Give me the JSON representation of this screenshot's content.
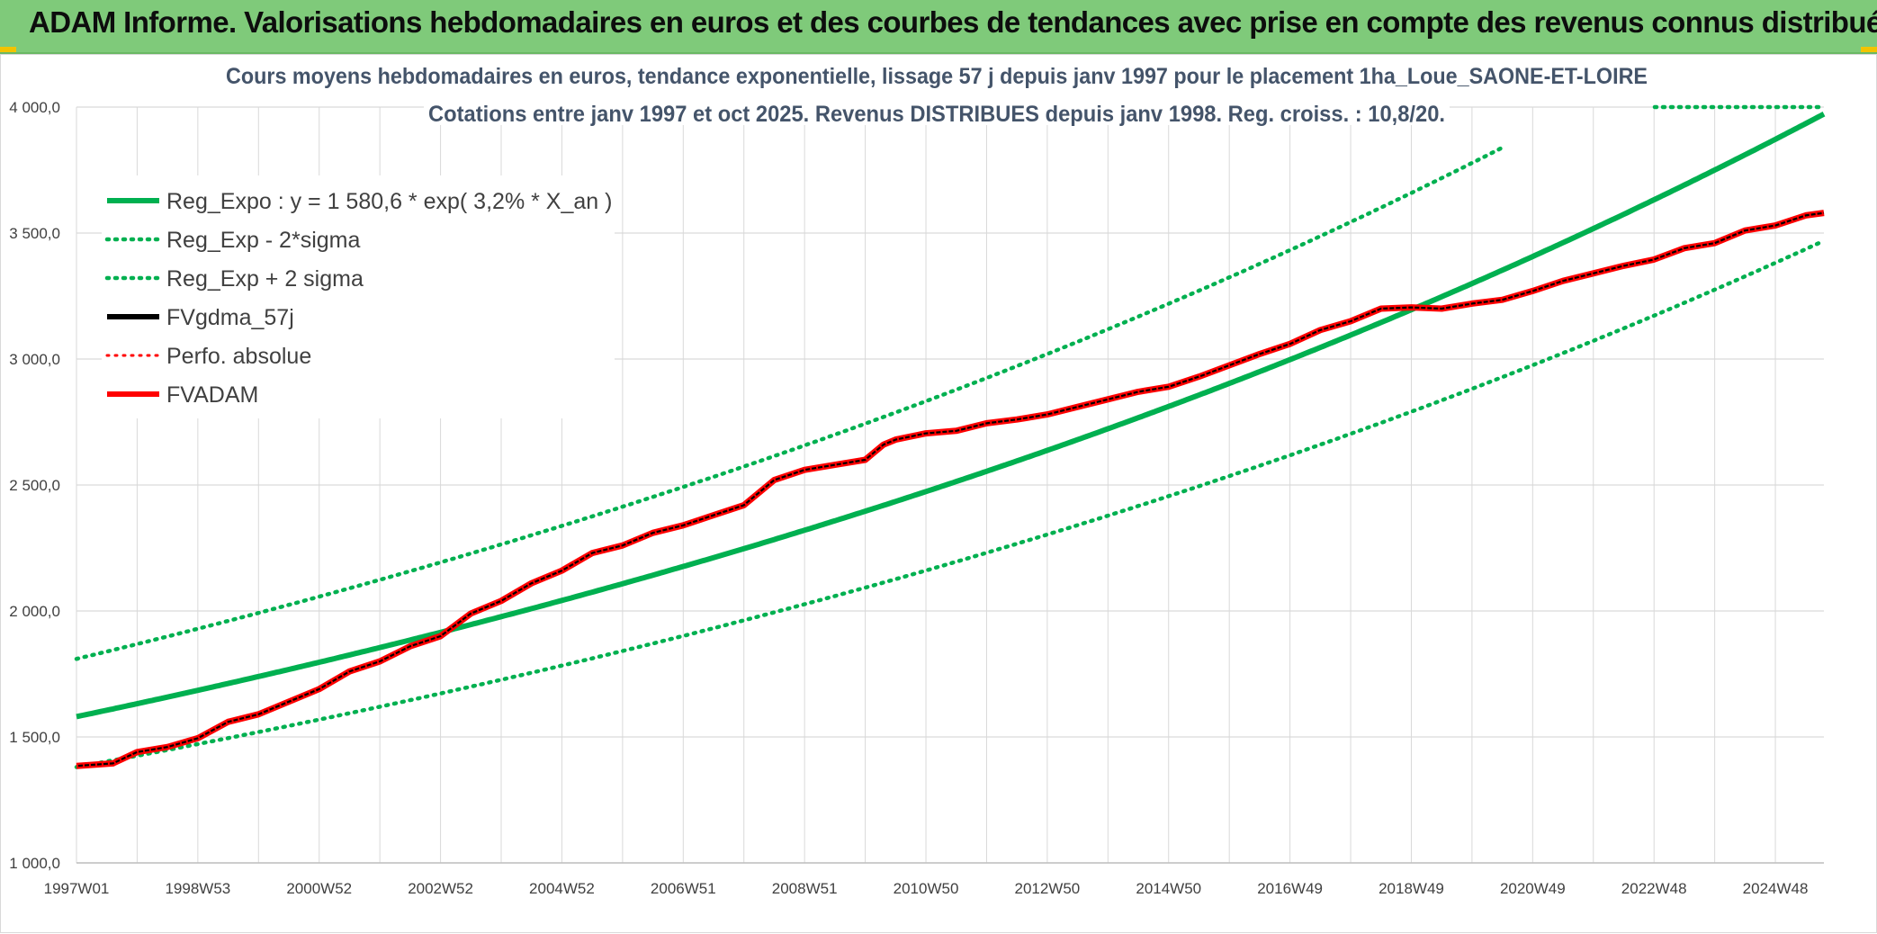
{
  "banner": {
    "title": "ADAM Informe. Valorisations hebdomadaires en euros et des courbes de tendances avec prise en compte des revenus connus distribués",
    "background": "#7fca7a",
    "corner_accent": "#f2c300"
  },
  "chart_data": {
    "type": "line",
    "title": "Cours moyens hebdomadaires en euros, tendance exponentielle, lissage 57 j depuis janv 1997 pour le placement 1ha_Loue_SAONE-ET-LOIRE",
    "subtitle": "Cotations entre janv 1997 et oct 2025. Revenus DISTRIBUES depuis janv 1998. Reg. croiss. : 10,8/20.",
    "xlabel": "",
    "ylabel": "",
    "ylim": [
      1000,
      4000
    ],
    "xlim_years": [
      1997.0,
      2025.8
    ],
    "y_ticks": [
      "1 000,0",
      "1 500,0",
      "2 000,0",
      "2 500,0",
      "3 000,0",
      "3 500,0",
      "4 000,0"
    ],
    "y_tick_values": [
      1000,
      1500,
      2000,
      2500,
      3000,
      3500,
      4000
    ],
    "x_ticks": [
      "1997W01",
      "1998W53",
      "2000W52",
      "2002W52",
      "2004W52",
      "2006W51",
      "2008W51",
      "2010W50",
      "2012W50",
      "2014W50",
      "2016W49",
      "2018W49",
      "2020W49",
      "2022W48",
      "2024W48"
    ],
    "x_tick_years": [
      1997.0,
      1999.0,
      2001.0,
      2003.0,
      2005.0,
      2007.0,
      2009.0,
      2011.0,
      2013.0,
      2015.0,
      2017.0,
      2019.0,
      2021.0,
      2023.0,
      2025.0
    ],
    "grid": true,
    "legend_position": "top-left",
    "regression": {
      "base": 1580.6,
      "rate": 0.032,
      "sigma_factor": 1.145
    },
    "series": [
      {
        "name": "Reg_Expo : y = 1 580,6 * exp( 3,2% *  X_an )",
        "color": "#00b050",
        "style": "solid"
      },
      {
        "name": "Reg_Exp - 2*sigma",
        "color": "#00b050",
        "style": "dotted"
      },
      {
        "name": "Reg_Exp + 2 sigma",
        "color": "#00b050",
        "style": "dotted"
      },
      {
        "name": "FVgdma_57j",
        "color": "#000000",
        "style": "solid"
      },
      {
        "name": "Perfo. absolue",
        "color": "#ff0000",
        "style": "dotted"
      },
      {
        "name": "FVADAM",
        "color": "#ff0000",
        "style": "solid"
      }
    ],
    "fvadam_points": [
      [
        1997.0,
        1385
      ],
      [
        1997.6,
        1395
      ],
      [
        1998.0,
        1440
      ],
      [
        1998.5,
        1460
      ],
      [
        1999.0,
        1495
      ],
      [
        1999.5,
        1560
      ],
      [
        2000.0,
        1590
      ],
      [
        2000.5,
        1640
      ],
      [
        2001.0,
        1690
      ],
      [
        2001.5,
        1760
      ],
      [
        2002.0,
        1800
      ],
      [
        2002.5,
        1860
      ],
      [
        2003.0,
        1900
      ],
      [
        2003.5,
        1990
      ],
      [
        2004.0,
        2040
      ],
      [
        2004.5,
        2110
      ],
      [
        2005.0,
        2160
      ],
      [
        2005.5,
        2230
      ],
      [
        2006.0,
        2260
      ],
      [
        2006.5,
        2310
      ],
      [
        2007.0,
        2340
      ],
      [
        2007.5,
        2380
      ],
      [
        2008.0,
        2420
      ],
      [
        2008.5,
        2520
      ],
      [
        2009.0,
        2560
      ],
      [
        2009.5,
        2580
      ],
      [
        2010.0,
        2600
      ],
      [
        2010.3,
        2660
      ],
      [
        2010.5,
        2680
      ],
      [
        2011.0,
        2705
      ],
      [
        2011.5,
        2715
      ],
      [
        2012.0,
        2745
      ],
      [
        2012.5,
        2760
      ],
      [
        2013.0,
        2780
      ],
      [
        2013.5,
        2810
      ],
      [
        2014.0,
        2840
      ],
      [
        2014.5,
        2870
      ],
      [
        2015.0,
        2890
      ],
      [
        2015.5,
        2930
      ],
      [
        2016.0,
        2975
      ],
      [
        2016.5,
        3020
      ],
      [
        2017.0,
        3060
      ],
      [
        2017.5,
        3115
      ],
      [
        2018.0,
        3150
      ],
      [
        2018.5,
        3200
      ],
      [
        2019.0,
        3205
      ],
      [
        2019.5,
        3200
      ],
      [
        2020.0,
        3220
      ],
      [
        2020.5,
        3235
      ],
      [
        2021.0,
        3270
      ],
      [
        2021.5,
        3310
      ],
      [
        2022.0,
        3340
      ],
      [
        2022.5,
        3370
      ],
      [
        2023.0,
        3395
      ],
      [
        2023.5,
        3440
      ],
      [
        2024.0,
        3460
      ],
      [
        2024.5,
        3510
      ],
      [
        2025.0,
        3530
      ],
      [
        2025.5,
        3570
      ],
      [
        2025.8,
        3580
      ]
    ]
  }
}
